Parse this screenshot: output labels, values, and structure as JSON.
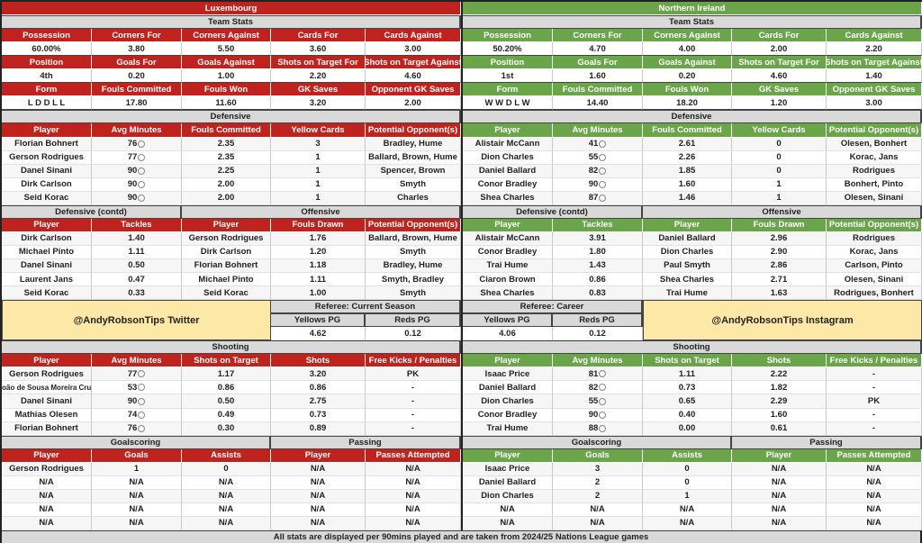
{
  "colors": {
    "luxembourg": "#c0231e",
    "northern_ireland": "#6aa54a",
    "section": "#d9d9d9",
    "promo": "#fde8a8"
  },
  "icons": {
    "minutes": "stopwatch-icon"
  },
  "luxembourg": {
    "name": "Luxembourg",
    "team_stats": {
      "title": "Team Stats",
      "rows": [
        {
          "headers": [
            "Possession",
            "Corners For",
            "Corners Against",
            "Cards For",
            "Cards Against"
          ],
          "values": [
            "60.00%",
            "3.80",
            "5.50",
            "3.60",
            "3.00"
          ]
        },
        {
          "headers": [
            "Position",
            "Goals For",
            "Goals Against",
            "Shots on Target For",
            "Shots on Target Against"
          ],
          "values": [
            "4th",
            "0.20",
            "1.00",
            "2.20",
            "4.60"
          ]
        },
        {
          "headers": [
            "Form",
            "Fouls Committed",
            "Fouls Won",
            "GK Saves",
            "Opponent GK Saves"
          ],
          "values": [
            "L D D L L",
            "17.80",
            "11.60",
            "3.20",
            "2.00"
          ]
        }
      ]
    },
    "defensive": {
      "title": "Defensive",
      "headers": [
        "Player",
        "Avg Minutes",
        "Fouls Committed",
        "Yellow Cards",
        "Potential Opponent(s)"
      ],
      "rows": [
        [
          "Florian Bohnert",
          "76",
          "2.35",
          "3",
          "Bradley, Hume"
        ],
        [
          "Gerson Rodrigues",
          "77",
          "2.35",
          "1",
          "Ballard, Brown, Hume"
        ],
        [
          "Danel Sinani",
          "90",
          "2.25",
          "1",
          "Spencer, Brown"
        ],
        [
          "Dirk Carlson",
          "90",
          "2.00",
          "1",
          "Smyth"
        ],
        [
          "Seid Korac",
          "90",
          "2.00",
          "1",
          "Charles"
        ]
      ]
    },
    "defensive_contd": {
      "title": "Defensive (contd)",
      "headers": [
        "Player",
        "Tackles"
      ],
      "rows": [
        [
          "Dirk Carlson",
          "1.40"
        ],
        [
          "Michael Pinto",
          "1.11"
        ],
        [
          "Danel Sinani",
          "0.50"
        ],
        [
          "Laurent Jans",
          "0.47"
        ],
        [
          "Seid Korac",
          "0.33"
        ]
      ]
    },
    "offensive": {
      "title": "Offensive",
      "headers": [
        "Player",
        "Fouls Drawn",
        "Potential Opponent(s)"
      ],
      "rows": [
        [
          "Gerson Rodrigues",
          "1.76",
          "Ballard, Brown, Hume"
        ],
        [
          "Dirk Carlson",
          "1.20",
          "Smyth"
        ],
        [
          "Florian Bohnert",
          "1.18",
          "Bradley, Hume"
        ],
        [
          "Michael Pinto",
          "1.11",
          "Smyth, Bradley"
        ],
        [
          "Seid Korac",
          "1.00",
          "Smyth"
        ]
      ]
    },
    "promo": "@AndyRobsonTips Twitter",
    "referee": {
      "title": "Referee: Current Season",
      "headers": [
        "Yellows PG",
        "Reds PG"
      ],
      "values": [
        "4.62",
        "0.12"
      ]
    },
    "shooting": {
      "title": "Shooting",
      "headers": [
        "Player",
        "Avg Minutes",
        "Shots on Target",
        "Shots",
        "Free Kicks / Penalties"
      ],
      "rows": [
        [
          "Gerson Rodrigues",
          "77",
          "1.17",
          "3.20",
          "PK"
        ],
        [
          "João de Sousa Moreira Cruz",
          "53",
          "0.86",
          "0.86",
          "-"
        ],
        [
          "Danel Sinani",
          "90",
          "0.50",
          "2.75",
          "-"
        ],
        [
          "Mathias Olesen",
          "74",
          "0.49",
          "0.73",
          "-"
        ],
        [
          "Florian Bohnert",
          "76",
          "0.30",
          "0.89",
          "-"
        ]
      ]
    },
    "goalscoring": {
      "title": "Goalscoring",
      "headers": [
        "Player",
        "Goals",
        "Assists"
      ],
      "rows": [
        [
          "Gerson Rodrigues",
          "1",
          "0"
        ],
        [
          "N/A",
          "N/A",
          "N/A"
        ],
        [
          "N/A",
          "N/A",
          "N/A"
        ],
        [
          "N/A",
          "N/A",
          "N/A"
        ],
        [
          "N/A",
          "N/A",
          "N/A"
        ]
      ]
    },
    "passing": {
      "title": "Passing",
      "headers": [
        "Player",
        "Passes Attempted"
      ],
      "rows": [
        [
          "N/A",
          "N/A"
        ],
        [
          "N/A",
          "N/A"
        ],
        [
          "N/A",
          "N/A"
        ],
        [
          "N/A",
          "N/A"
        ],
        [
          "N/A",
          "N/A"
        ]
      ]
    }
  },
  "northern_ireland": {
    "name": "Northern Ireland",
    "team_stats": {
      "title": "Team Stats",
      "rows": [
        {
          "headers": [
            "Possession",
            "Corners For",
            "Corners Against",
            "Cards For",
            "Cards Against"
          ],
          "values": [
            "50.20%",
            "4.70",
            "4.00",
            "2.00",
            "2.20"
          ]
        },
        {
          "headers": [
            "Position",
            "Goals For",
            "Goals Against",
            "Shots on Target For",
            "Shots on Target Against"
          ],
          "values": [
            "1st",
            "1.60",
            "0.20",
            "4.60",
            "1.40"
          ]
        },
        {
          "headers": [
            "Form",
            "Fouls Committed",
            "Fouls Won",
            "GK Saves",
            "Opponent GK Saves"
          ],
          "values": [
            "W W D L W",
            "14.40",
            "18.20",
            "1.20",
            "3.00"
          ]
        }
      ]
    },
    "defensive": {
      "title": "Defensive",
      "headers": [
        "Player",
        "Avg Minutes",
        "Fouls Committed",
        "Yellow Cards",
        "Potential Opponent(s)"
      ],
      "rows": [
        [
          "Alistair McCann",
          "41",
          "2.61",
          "0",
          "Olesen, Bonhert"
        ],
        [
          "Dion Charles",
          "55",
          "2.26",
          "0",
          "Korac, Jans"
        ],
        [
          "Daniel Ballard",
          "82",
          "1.85",
          "0",
          "Rodrigues"
        ],
        [
          "Conor Bradley",
          "90",
          "1.60",
          "1",
          "Bonhert, Pinto"
        ],
        [
          "Shea Charles",
          "87",
          "1.46",
          "1",
          "Olesen, Sinani"
        ]
      ]
    },
    "defensive_contd": {
      "title": "Defensive (contd)",
      "headers": [
        "Player",
        "Tackles"
      ],
      "rows": [
        [
          "Alistair McCann",
          "3.91"
        ],
        [
          "Conor Bradley",
          "1.80"
        ],
        [
          "Trai Hume",
          "1.43"
        ],
        [
          "Ciaron Brown",
          "0.86"
        ],
        [
          "Shea Charles",
          "0.83"
        ]
      ]
    },
    "offensive": {
      "title": "Offensive",
      "headers": [
        "Player",
        "Fouls Drawn",
        "Potential Opponent(s)"
      ],
      "rows": [
        [
          "Daniel Ballard",
          "2.96",
          "Rodrigues"
        ],
        [
          "Dion Charles",
          "2.90",
          "Korac, Jans"
        ],
        [
          "Paul Smyth",
          "2.86",
          "Carlson, Pinto"
        ],
        [
          "Shea Charles",
          "2.71",
          "Olesen, Sinani"
        ],
        [
          "Trai Hume",
          "1.63",
          "Rodrigues, Bonhert"
        ]
      ]
    },
    "promo": "@AndyRobsonTips Instagram",
    "referee": {
      "title": "Referee: Career",
      "headers": [
        "Yellows PG",
        "Reds PG"
      ],
      "values": [
        "4.06",
        "0.12"
      ]
    },
    "shooting": {
      "title": "Shooting",
      "headers": [
        "Player",
        "Avg Minutes",
        "Shots on Target",
        "Shots",
        "Free Kicks / Penalties"
      ],
      "rows": [
        [
          "Isaac Price",
          "81",
          "1.11",
          "2.22",
          "-"
        ],
        [
          "Daniel Ballard",
          "82",
          "0.73",
          "1.82",
          "-"
        ],
        [
          "Dion Charles",
          "55",
          "0.65",
          "2.29",
          "PK"
        ],
        [
          "Conor Bradley",
          "90",
          "0.40",
          "1.60",
          "-"
        ],
        [
          "Trai Hume",
          "88",
          "0.00",
          "0.61",
          "-"
        ]
      ]
    },
    "goalscoring": {
      "title": "Goalscoring",
      "headers": [
        "Player",
        "Goals",
        "Assists"
      ],
      "rows": [
        [
          "Isaac Price",
          "3",
          "0"
        ],
        [
          "Daniel Ballard",
          "2",
          "0"
        ],
        [
          "Dion Charles",
          "2",
          "1"
        ],
        [
          "N/A",
          "N/A",
          "N/A"
        ],
        [
          "N/A",
          "N/A",
          "N/A"
        ]
      ]
    },
    "passing": {
      "title": "Passing",
      "headers": [
        "Player",
        "Passes Attempted"
      ],
      "rows": [
        [
          "N/A",
          "N/A"
        ],
        [
          "N/A",
          "N/A"
        ],
        [
          "N/A",
          "N/A"
        ],
        [
          "N/A",
          "N/A"
        ],
        [
          "N/A",
          "N/A"
        ]
      ]
    }
  },
  "footer": "All stats are displayed per 90mins played and are taken from 2024/25 Nations League games"
}
